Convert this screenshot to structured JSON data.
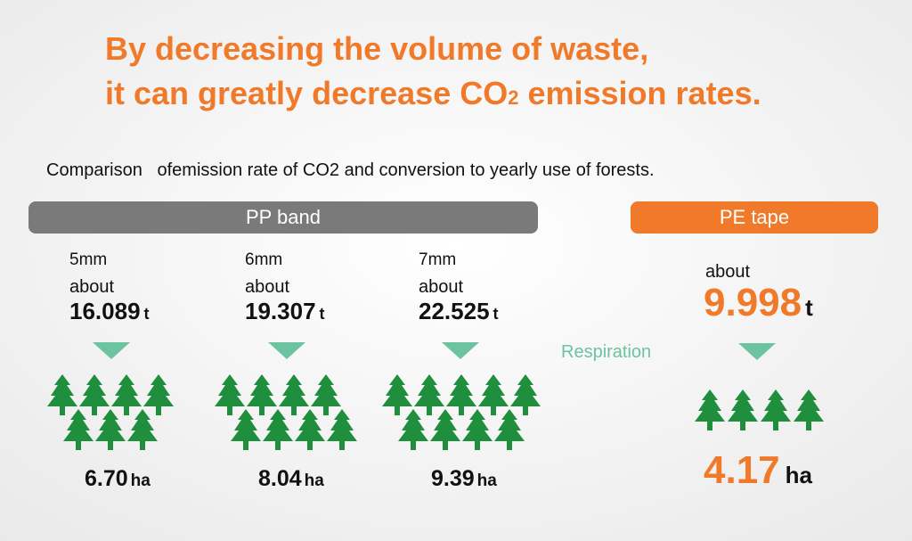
{
  "headline": {
    "line1": "By decreasing the volume of waste,",
    "line2": "it can greatly decrease CO",
    "line2_sub": "2",
    "line2_end": " emission rates."
  },
  "subtitle": "Comparison   ofemission rate of CO2 and conversion to yearly use of forests.",
  "pp_band": {
    "label": "PP band",
    "items": [
      {
        "size": "5mm",
        "about": "about",
        "amount": "16.089",
        "unit": "t",
        "area": "6.70",
        "area_unit": "ha"
      },
      {
        "size": "6mm",
        "about": "about",
        "amount": "19.307",
        "unit": "t",
        "area": "8.04",
        "area_unit": "ha"
      },
      {
        "size": "7mm",
        "about": "about",
        "amount": "22.525",
        "unit": "t",
        "area": "9.39",
        "area_unit": "ha"
      }
    ]
  },
  "pe_tape": {
    "label": "PE tape",
    "about": "about",
    "amount": "9.998",
    "unit": "t",
    "area": "4.17",
    "area_unit": "ha"
  },
  "respiration": "Respiration"
}
